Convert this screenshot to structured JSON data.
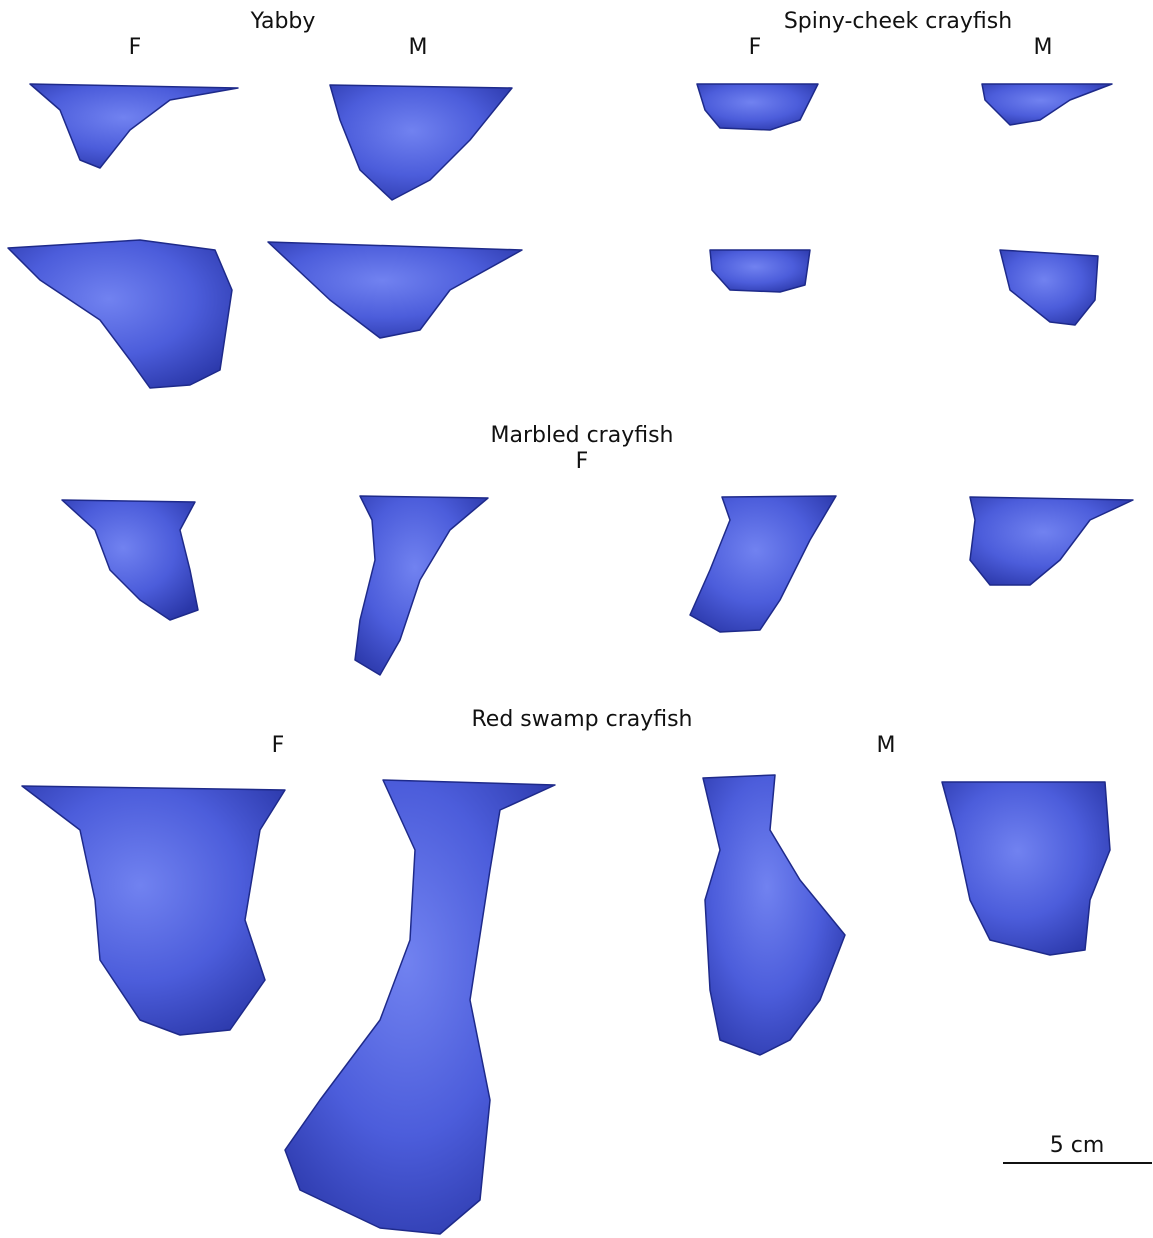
{
  "groups": [
    {
      "title": "Yabby",
      "labels": [
        "F",
        "M"
      ]
    },
    {
      "title": "Spiny-cheek crayfish",
      "labels": [
        "F",
        "M"
      ]
    },
    {
      "title": "Marbled crayfish",
      "labels": [
        "F"
      ]
    },
    {
      "title": "Red swamp crayfish",
      "labels": [
        "F",
        "M"
      ]
    }
  ],
  "scale_bar": {
    "label": "5 cm"
  }
}
